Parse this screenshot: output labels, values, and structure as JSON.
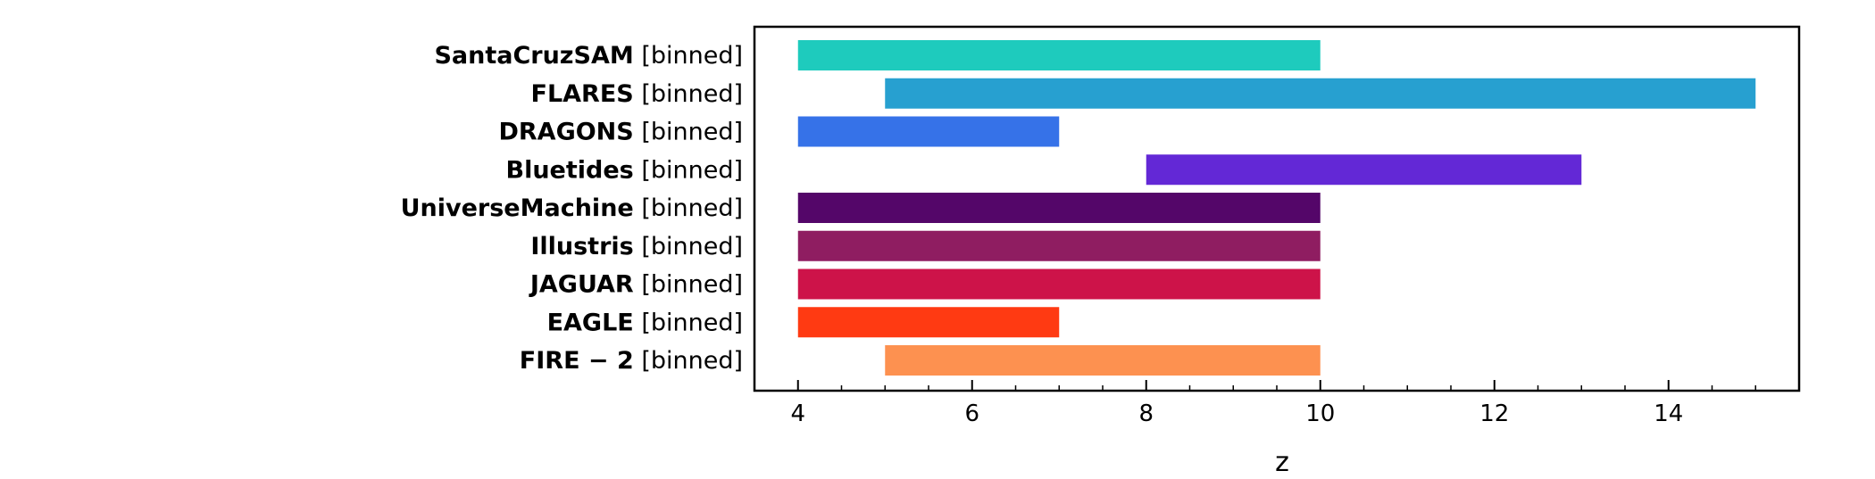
{
  "chart_data": {
    "type": "bar",
    "orientation": "horizontal-range",
    "title": "",
    "xlabel": "z",
    "ylabel": "",
    "xlim": [
      3.5,
      15.5
    ],
    "xticks": [
      4,
      6,
      8,
      10,
      12,
      14
    ],
    "xminor_step": 0.5,
    "grid": false,
    "category_suffix": "[binned]",
    "categories": [
      "SantaCruzSAM",
      "FLARES",
      "DRAGONS",
      "Bluetides",
      "UniverseMachine",
      "Illustris",
      "JAGUAR",
      "EAGLE",
      "FIRE − 2"
    ],
    "ranges": [
      [
        4,
        10
      ],
      [
        5,
        15
      ],
      [
        4,
        7
      ],
      [
        8,
        13
      ],
      [
        4,
        10
      ],
      [
        4,
        10
      ],
      [
        4,
        10
      ],
      [
        4,
        7
      ],
      [
        5,
        10
      ]
    ],
    "colors": [
      "#1ecbbd",
      "#27a0d0",
      "#3672e8",
      "#6328d6",
      "#540669",
      "#8f1d61",
      "#cd1349",
      "#ff3a12",
      "#fd9150"
    ]
  }
}
